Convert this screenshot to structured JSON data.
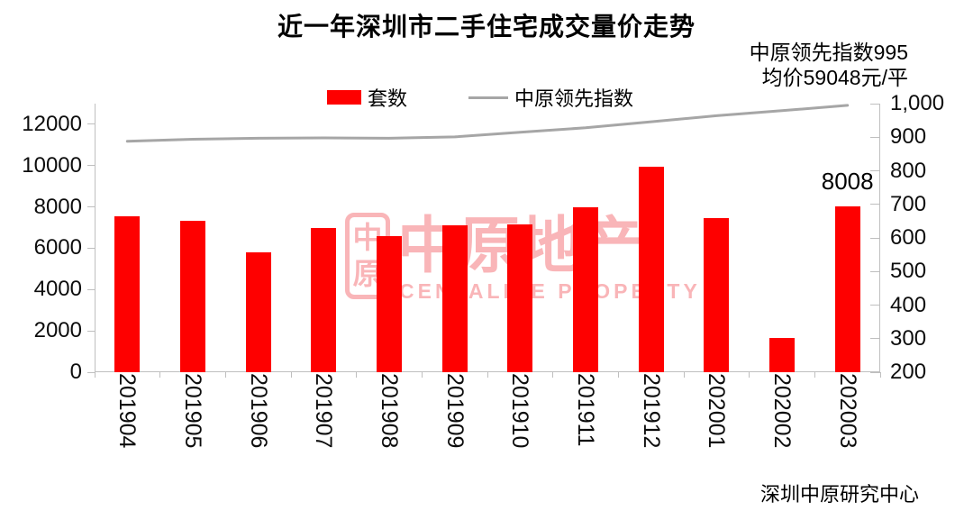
{
  "chart": {
    "title": "近一年深圳市二手住宅成交量价走势",
    "annotations": {
      "index_note": "中原领先指数995",
      "price_note": "均价59048元/平"
    },
    "footer": "深圳中原研究中心"
  },
  "watermark": {
    "logo_top": "中",
    "logo_bottom": "原",
    "text": "中原地产",
    "subtext": "CENTALINE PROPERTY"
  },
  "colors": {
    "bar": "#fe0000",
    "line": "#a6a6a6",
    "axis": "#bfbfbf",
    "watermark": "#ee1c25"
  },
  "chart_data": {
    "type": "bar",
    "subtype": "bar+line dual-axis combo",
    "title": "近一年深圳市二手住宅成交量价走势",
    "categories": [
      "201904",
      "201905",
      "201906",
      "201907",
      "201908",
      "201909",
      "201910",
      "201911",
      "201912",
      "202001",
      "202002",
      "202003"
    ],
    "series": [
      {
        "name": "套数",
        "type": "bar",
        "axis": "left",
        "color": "#fe0000",
        "values": [
          7550,
          7350,
          5800,
          7000,
          6600,
          7100,
          7150,
          8000,
          9950,
          7450,
          1650,
          8008
        ],
        "data_label": {
          "category": "202003",
          "index": 11,
          "text": "8008"
        }
      },
      {
        "name": "中原领先指数",
        "type": "line",
        "axis": "right",
        "color": "#a6a6a6",
        "values": [
          888,
          894,
          897,
          898,
          897,
          901,
          915,
          928,
          946,
          964,
          979,
          995
        ]
      }
    ],
    "left_axis": {
      "min": 0,
      "max": 13000,
      "tick_values": [
        0,
        2000,
        4000,
        6000,
        8000,
        10000,
        12000
      ],
      "tick_labels": [
        "0",
        "2000",
        "4000",
        "6000",
        "8000",
        "10000",
        "12000"
      ]
    },
    "right_axis": {
      "min": 200,
      "max": 1000,
      "tick_values": [
        200,
        300,
        400,
        500,
        600,
        700,
        800,
        900,
        1000
      ],
      "tick_labels": [
        "200",
        "300",
        "400",
        "500",
        "600",
        "700",
        "800",
        "900",
        "1,000"
      ]
    },
    "grid": false,
    "legend_position": "top-center",
    "x_label_rotation_deg": 90
  }
}
